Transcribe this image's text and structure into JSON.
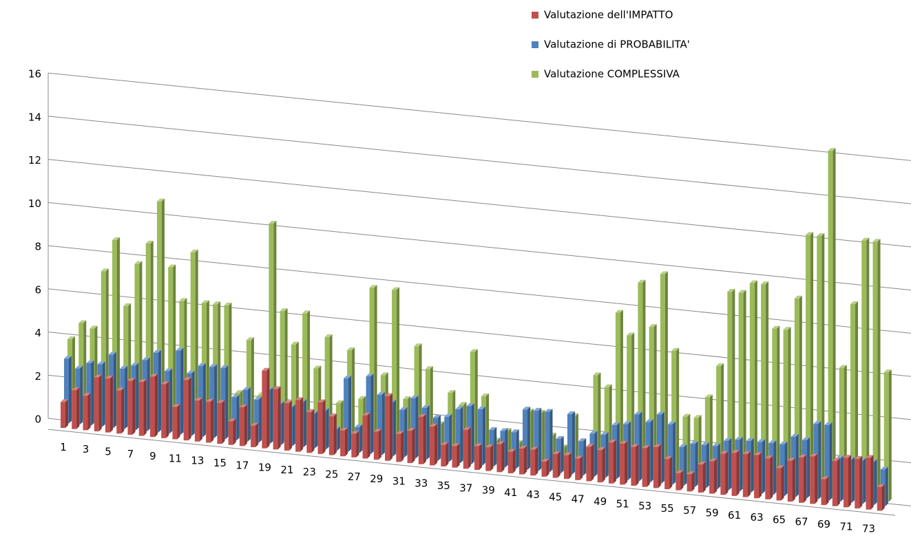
{
  "chart_data": {
    "type": "bar3d",
    "categories": [
      "1",
      null,
      "3",
      null,
      "5",
      null,
      "7",
      null,
      "9",
      null,
      "11",
      null,
      "13",
      null,
      "15",
      null,
      "17",
      null,
      "19",
      null,
      "21",
      null,
      "23",
      null,
      "25",
      null,
      "27",
      null,
      "29",
      null,
      "31",
      null,
      "33",
      null,
      "35",
      null,
      "37",
      null,
      "39",
      null,
      "41",
      null,
      "43",
      null,
      "45",
      null,
      "47",
      null,
      "49",
      null,
      "51",
      null,
      "53",
      null,
      "55",
      null,
      "57",
      null,
      "59",
      null,
      "61",
      null,
      "63",
      null,
      "65",
      null,
      "67",
      null,
      "69",
      null,
      "71",
      null,
      "73",
      null
    ],
    "series": [
      {
        "name": "Valutazione dell'IMPATTO",
        "color": "#c0504d",
        "values": [
          1.2,
          1.8,
          1.6,
          2.5,
          2.5,
          2,
          2.5,
          2.5,
          2.8,
          2.5,
          1.5,
          2.8,
          1.9,
          1.9,
          1.9,
          1.1,
          1.8,
          1,
          3.6,
          2.8,
          2.2,
          2.4,
          1.9,
          2.4,
          1.8,
          1.2,
          1.1,
          2,
          1.3,
          3,
          1.3,
          1.5,
          2.2,
          1.8,
          1,
          1,
          1.8,
          1.1,
          1.1,
          1.3,
          1,
          1.2,
          1.2,
          0.7,
          1.1,
          1.1,
          1,
          1.6,
          1.5,
          1.9,
          1.9,
          1.8,
          1.8,
          1.9,
          1.4,
          0.8,
          0.8,
          1.3,
          1.5,
          1.9,
          2,
          2,
          2,
          1.9,
          1.5,
          1.9,
          2.1,
          2.2,
          1.2,
          2.1,
          2.3,
          2.3,
          2.4,
          1.1
        ]
      },
      {
        "name": "Valutazione di PROBABILITA'",
        "color": "#4f81bd",
        "values": [
          3,
          2.6,
          2.9,
          2.9,
          3.4,
          2.8,
          3,
          3.3,
          3.7,
          2.9,
          3.9,
          2.9,
          3.3,
          3.3,
          3.3,
          2,
          2.4,
          2,
          2.5,
          1.9,
          1.8,
          2.1,
          1.6,
          1.8,
          1,
          3.4,
          1.2,
          3.6,
          2.8,
          2.5,
          2.2,
          2.8,
          2.4,
          2,
          2.1,
          2.5,
          2.7,
          2.6,
          1.7,
          1.7,
          1.7,
          2.8,
          2.8,
          2.8,
          1.6,
          2.8,
          1.6,
          2,
          2,
          2.5,
          2.6,
          3.1,
          2.8,
          3.2,
          2.8,
          1.8,
          2,
          2,
          2,
          2.3,
          2.4,
          2.4,
          2.4,
          2.4,
          2.4,
          2.8,
          2.7,
          3.5,
          3.5,
          2,
          2,
          2,
          2,
          1.7
        ]
      },
      {
        "name": "Valutazione COMPLESSIVA",
        "color": "#9bbb59",
        "values": [
          3.7,
          4.5,
          4.3,
          7,
          8.5,
          5.5,
          7.5,
          8.5,
          10.5,
          7.5,
          6,
          8.3,
          6,
          6,
          6,
          2,
          4.5,
          2,
          10,
          6,
          4.5,
          6,
          3.5,
          5,
          2,
          4.5,
          2.3,
          7.5,
          3.5,
          7.5,
          2.5,
          5,
          4,
          1.5,
          3,
          2.5,
          5,
          3,
          1,
          1.5,
          1,
          2.5,
          2.5,
          1.5,
          1,
          2.5,
          1,
          4.5,
          4,
          7.5,
          6.5,
          9,
          7,
          9.5,
          6,
          3,
          3,
          4,
          5.5,
          9,
          9,
          9.5,
          9.5,
          7.5,
          7.5,
          9,
          12,
          12,
          16,
          6,
          9,
          12,
          12,
          6
        ]
      }
    ],
    "ylim": [
      0,
      16
    ],
    "yticks": [
      0,
      2,
      4,
      6,
      8,
      10,
      12,
      14,
      16
    ],
    "grid": true,
    "legend": "top-right"
  }
}
